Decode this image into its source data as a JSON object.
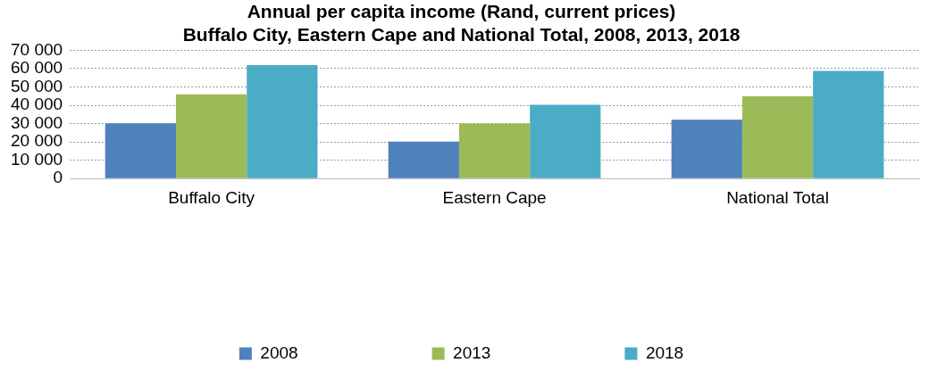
{
  "chart_data": {
    "type": "bar",
    "title": "Annual per capita income (Rand, current prices)",
    "subtitle": "Buffalo City, Eastern Cape and National Total, 2008, 2013, 2018",
    "categories": [
      "Buffalo City",
      "Eastern Cape",
      "National Total"
    ],
    "series": [
      {
        "name": "2008",
        "color": "#4f81bd",
        "values": [
          30200,
          20200,
          32100
        ]
      },
      {
        "name": "2013",
        "color": "#9bbb59",
        "values": [
          46000,
          30000,
          44900
        ]
      },
      {
        "name": "2018",
        "color": "#4bacc6",
        "values": [
          61900,
          40200,
          58800
        ]
      }
    ],
    "ylim": [
      0,
      70000
    ],
    "yticks": [
      0,
      {
        "value": 10000,
        "label": "10 000"
      },
      {
        "value": 20000,
        "label": "20 000"
      },
      {
        "value": 30000,
        "label": "30 000"
      },
      {
        "value": 40000,
        "label": "40 000"
      },
      {
        "value": 50000,
        "label": "50 000"
      },
      {
        "value": 60000,
        "label": "60 000"
      },
      {
        "value": 70000,
        "label": "70 000"
      }
    ],
    "grid": "y",
    "legend": "bottom"
  }
}
